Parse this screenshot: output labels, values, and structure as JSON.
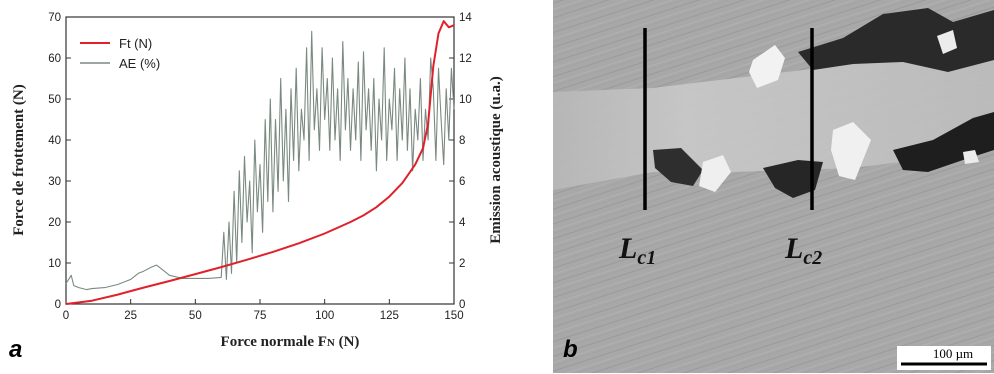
{
  "panel_a": {
    "letter": "a",
    "chart_data": {
      "type": "line",
      "xlabel_main": "Force normale F",
      "xlabel_sub": "N",
      "xlabel_unit": " (N)",
      "ylabel_left": "Force de frottement (N)",
      "ylabel_right": "Emission acoustique (u.a.)",
      "xlim": [
        0,
        150
      ],
      "ylim_left": [
        0,
        70
      ],
      "ylim_right": [
        0,
        14
      ],
      "xticks": [
        0,
        25,
        50,
        75,
        100,
        125,
        150
      ],
      "yticks_left": [
        0,
        10,
        20,
        30,
        40,
        50,
        60,
        70
      ],
      "yticks_right": [
        0,
        2,
        4,
        6,
        8,
        10,
        12,
        14
      ],
      "legend_position": "top-left",
      "series": [
        {
          "name": "Ft (N)",
          "axis": "left",
          "color": "#e0202a",
          "x": [
            0,
            10,
            20,
            30,
            40,
            50,
            60,
            70,
            80,
            90,
            100,
            110,
            115,
            120,
            125,
            130,
            135,
            138,
            140,
            142,
            144,
            146,
            148,
            150
          ],
          "y": [
            0,
            0.8,
            2.3,
            4.0,
            5.6,
            7.3,
            9.0,
            10.8,
            12.7,
            14.8,
            17.2,
            20.0,
            21.6,
            23.6,
            26.2,
            29.5,
            34.0,
            38.0,
            44.0,
            58.0,
            66.0,
            69.0,
            67.5,
            68.0
          ]
        },
        {
          "name": "AE (%)",
          "axis": "right",
          "color": "#7a8a80",
          "x": [
            0,
            1,
            2,
            3,
            5,
            8,
            10,
            15,
            20,
            25,
            28,
            30,
            33,
            35,
            37,
            40,
            45,
            50,
            55,
            60,
            61,
            62,
            63,
            64,
            65,
            66,
            67,
            68,
            69,
            70,
            71,
            72,
            73,
            74,
            75,
            76,
            77,
            78,
            79,
            80,
            81,
            82,
            83,
            84,
            85,
            86,
            87,
            88,
            89,
            90,
            91,
            92,
            93,
            94,
            95,
            96,
            97,
            98,
            99,
            100,
            101,
            102,
            103,
            104,
            105,
            106,
            107,
            108,
            109,
            110,
            111,
            112,
            113,
            114,
            115,
            116,
            117,
            118,
            119,
            120,
            121,
            122,
            123,
            124,
            125,
            126,
            127,
            128,
            129,
            130,
            131,
            132,
            133,
            134,
            135,
            136,
            137,
            138,
            139,
            140,
            141,
            142,
            143,
            144,
            145,
            146,
            147,
            148,
            149,
            150
          ],
          "y": [
            1.0,
            1.2,
            1.4,
            0.9,
            0.8,
            0.7,
            0.75,
            0.8,
            0.95,
            1.2,
            1.5,
            1.6,
            1.8,
            1.9,
            1.7,
            1.4,
            1.25,
            1.25,
            1.25,
            1.3,
            3.5,
            1.2,
            4.0,
            1.5,
            5.5,
            2.0,
            6.5,
            3.0,
            7.2,
            4.0,
            6.0,
            2.5,
            8.0,
            4.5,
            6.8,
            3.5,
            9.0,
            5.0,
            10.0,
            4.5,
            9.0,
            5.5,
            11.0,
            6.0,
            9.5,
            5.0,
            10.5,
            7.0,
            11.5,
            6.5,
            9.5,
            8.0,
            12.5,
            7.0,
            13.3,
            8.5,
            10.5,
            7.5,
            12.5,
            9.0,
            11.0,
            7.5,
            12.0,
            8.0,
            10.5,
            7.0,
            12.8,
            8.5,
            11.0,
            7.5,
            10.5,
            8.0,
            11.8,
            7.0,
            12.3,
            8.5,
            10.5,
            7.5,
            11.0,
            6.5,
            10.0,
            8.0,
            12.5,
            7.0,
            10.0,
            8.5,
            11.5,
            7.0,
            10.5,
            8.0,
            12.0,
            7.5,
            10.5,
            6.5,
            9.5,
            8.0,
            11.0,
            7.0,
            9.5,
            8.0,
            12.0,
            10.5,
            7.0,
            11.5,
            9.0,
            6.8,
            10.5,
            8.0,
            11.5,
            9.5
          ]
        }
      ]
    }
  },
  "panel_b": {
    "letter": "b",
    "label_lc1_main": "L",
    "label_lc1_sub": "c1",
    "label_lc2_main": "L",
    "label_lc2_sub": "c2",
    "scale_bar_text": "100 µm"
  }
}
